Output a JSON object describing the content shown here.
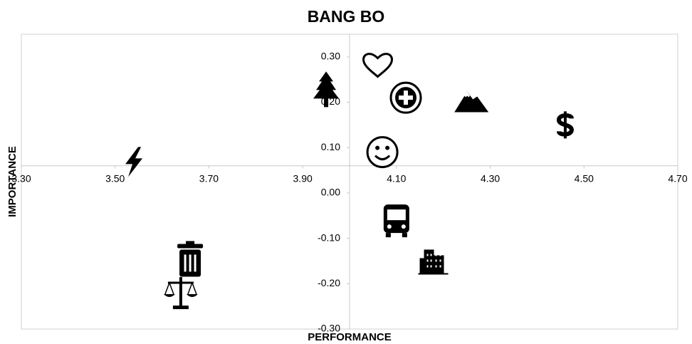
{
  "chart_data": {
    "type": "scatter",
    "title": "BANG BO",
    "x_label": "PERFORMANCE",
    "y_label": "IMPORTANCE",
    "x": [
      4.06,
      3.95,
      4.12,
      4.26,
      4.46,
      4.07,
      3.54,
      4.1,
      4.18,
      3.66,
      3.64
    ],
    "values": [
      0.28,
      0.23,
      0.21,
      0.2,
      0.15,
      0.09,
      0.07,
      -0.06,
      -0.15,
      -0.15,
      -0.22
    ],
    "color": "#000000",
    "xlim": [
      3.3,
      4.7
    ],
    "xticks": [
      {
        "value": 3.3,
        "label": "3.30"
      },
      {
        "value": 3.5,
        "label": "3.50"
      },
      {
        "value": 3.7,
        "label": "3.70"
      },
      {
        "value": 3.9,
        "label": "3.90"
      },
      {
        "value": 4.1,
        "label": "4.10"
      },
      {
        "value": 4.3,
        "label": "4.30"
      },
      {
        "value": 4.5,
        "label": "4.50"
      },
      {
        "value": 4.7,
        "label": "4.70"
      }
    ],
    "ylim": [
      -0.3,
      0.35
    ],
    "yticks": [
      {
        "value": 0.3,
        "label": "0.30"
      },
      {
        "value": 0.2,
        "label": "0.20"
      },
      {
        "value": 0.1,
        "label": "0.10"
      },
      {
        "value": 0,
        "label": "0.00"
      },
      {
        "value": -0.1,
        "label": "-0.10"
      },
      {
        "value": -0.2,
        "label": "-0.20"
      },
      {
        "value": -0.3,
        "label": "-0.30"
      }
    ],
    "axis_cross": {
      "x": 4.0,
      "y": 0.06
    },
    "grid": false
  }
}
